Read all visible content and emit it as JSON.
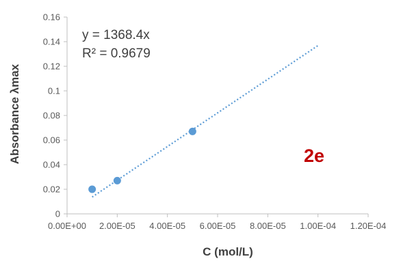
{
  "chart_data": {
    "type": "scatter",
    "title": "",
    "xlabel": "C (mol/L)",
    "ylabel": "Absorbance λmax",
    "xlim": [
      0,
      0.00012
    ],
    "ylim": [
      0,
      0.16
    ],
    "xticks": [
      0,
      2e-05,
      4e-05,
      6e-05,
      8e-05,
      0.0001,
      0.00012
    ],
    "xtick_labels": [
      "0.00E+00",
      "2.00E-05",
      "4.00E-05",
      "6.00E-05",
      "8.00E-05",
      "1.00E-04",
      "1.20E-04"
    ],
    "yticks": [
      0,
      0.02,
      0.04,
      0.06,
      0.08,
      0.1,
      0.12,
      0.14,
      0.16
    ],
    "ytick_labels": [
      "0",
      "0.02",
      "0.04",
      "0.06",
      "0.08",
      "0.1",
      "0.12",
      "0.14",
      "0.16"
    ],
    "grid": false,
    "series": [
      {
        "x": [
          1e-05,
          2e-05,
          5e-05
        ],
        "y": [
          0.02,
          0.027,
          0.067
        ],
        "color": "#5b9bd5"
      }
    ],
    "trendline": {
      "type": "linear",
      "slope": 1368.4,
      "x_range": [
        1e-05,
        0.0001
      ],
      "color": "#5b9bd5",
      "style": "dotted"
    },
    "annotations": {
      "equation": "y = 1368.4x",
      "r_squared": "R² = 0.9679",
      "panel_label": "2e",
      "panel_label_color": "#c00000"
    }
  }
}
